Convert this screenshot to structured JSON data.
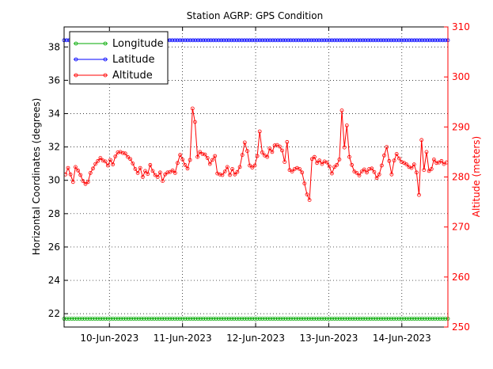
{
  "chart_data": {
    "type": "line",
    "title": "Station AGRP: GPS Condition",
    "xlabel": "",
    "ylabel_left": "Horizontal Coordinates (degrees)",
    "ylabel_right": "Altitude (meters)",
    "x_ticks": [
      "10-Jun-2023",
      "11-Jun-2023",
      "12-Jun-2023",
      "13-Jun-2023",
      "14-Jun-2023"
    ],
    "x_range_days": [
      9.38,
      14.63
    ],
    "ylim_left": [
      21.2,
      39.2
    ],
    "yticks_left": [
      "22",
      "24",
      "26",
      "28",
      "30",
      "32",
      "34",
      "36",
      "38"
    ],
    "ylim_right": [
      250,
      310
    ],
    "yticks_right": [
      "250",
      "260",
      "270",
      "280",
      "290",
      "300",
      "310"
    ],
    "grid": true,
    "legend": "top-left",
    "series": [
      {
        "name": "Longitude",
        "axis": "left",
        "color": "#00aa00",
        "constant": 21.7
      },
      {
        "name": "Latitude",
        "axis": "right",
        "color": "#0000ff",
        "constant": 38.4,
        "axis_ref": "left"
      },
      {
        "name": "Altitude",
        "axis": "right",
        "color": "#ff0000",
        "values": [
          280.5,
          281.8,
          280.5,
          279.0,
          282.0,
          281.3,
          280.4,
          279.2,
          278.6,
          279.0,
          280.8,
          281.7,
          282.6,
          283.2,
          283.8,
          283.3,
          283.1,
          282.3,
          283.4,
          282.5,
          284.1,
          284.9,
          285.0,
          284.8,
          284.7,
          284.0,
          283.6,
          282.7,
          281.6,
          280.8,
          281.8,
          280.0,
          281.2,
          280.6,
          282.4,
          281.2,
          280.4,
          280.0,
          280.9,
          279.2,
          280.5,
          280.9,
          281.0,
          281.3,
          280.8,
          282.8,
          284.4,
          283.5,
          282.4,
          281.7,
          283.4,
          293.7,
          291.0,
          284.0,
          285.0,
          284.6,
          284.5,
          283.8,
          282.6,
          283.4,
          284.2,
          280.7,
          280.5,
          280.4,
          281.1,
          282.0,
          280.4,
          281.6,
          280.5,
          281.0,
          282.0,
          284.4,
          286.9,
          285.2,
          282.3,
          281.9,
          282.3,
          284.2,
          289.1,
          284.9,
          284.3,
          284.0,
          285.7,
          285.0,
          286.3,
          286.4,
          286.1,
          285.3,
          283.0,
          287.0,
          281.4,
          281.1,
          281.6,
          281.8,
          281.6,
          280.9,
          278.7,
          276.5,
          275.4,
          283.6,
          284.0,
          282.8,
          283.3,
          282.6,
          283.1,
          282.9,
          282.1,
          280.7,
          282.0,
          282.4,
          283.5,
          293.3,
          285.9,
          290.3,
          284.0,
          282.4,
          281.1,
          280.8,
          280.3,
          281.1,
          281.5,
          280.9,
          281.6,
          281.7,
          281.0,
          279.8,
          280.5,
          282.3,
          284.3,
          286.0,
          283.2,
          280.5,
          283.3,
          284.6,
          283.7,
          283.0,
          282.8,
          282.5,
          282.0,
          281.8,
          282.5,
          280.9,
          276.4,
          287.4,
          281.4,
          285.0,
          281.2,
          281.6,
          283.5,
          282.8,
          282.9,
          283.2,
          282.6,
          282.9
        ]
      }
    ]
  }
}
